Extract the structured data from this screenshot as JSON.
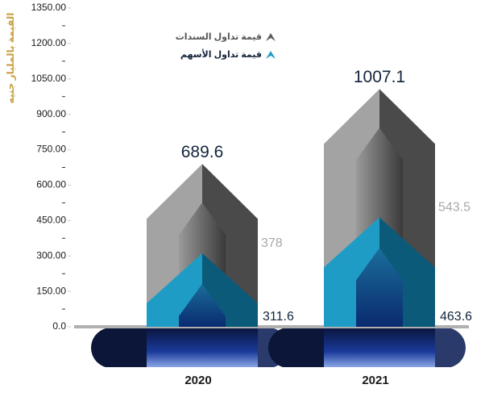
{
  "chart_data": {
    "type": "bar",
    "stacked": true,
    "y_label": "القيمة بالمليار جنيه",
    "categories": [
      "2020",
      "2021"
    ],
    "series": [
      {
        "name": "قيمة تداول الأسهم",
        "color": "#1e9cc6",
        "values": [
          311.6,
          463.6
        ]
      },
      {
        "name": "قيمة تداول السندات",
        "color": "#8c8c8c",
        "values": [
          378,
          543.5
        ]
      }
    ],
    "totals": [
      689.6,
      1007.1
    ],
    "ylim": [
      0,
      1350
    ],
    "yticks": [
      {
        "value": 0,
        "label": "0.0"
      },
      {
        "value": 150,
        "label": "150.00"
      },
      {
        "value": 300,
        "label": "300.00"
      },
      {
        "value": 450,
        "label": "450.00"
      },
      {
        "value": 600,
        "label": "600.00"
      },
      {
        "value": 750,
        "label": "750.00"
      },
      {
        "value": 900,
        "label": "900.00"
      },
      {
        "value": 1050,
        "label": "1050.00"
      },
      {
        "value": 1200,
        "label": "1200.00"
      },
      {
        "value": 1350,
        "label": "1350.00"
      }
    ]
  }
}
